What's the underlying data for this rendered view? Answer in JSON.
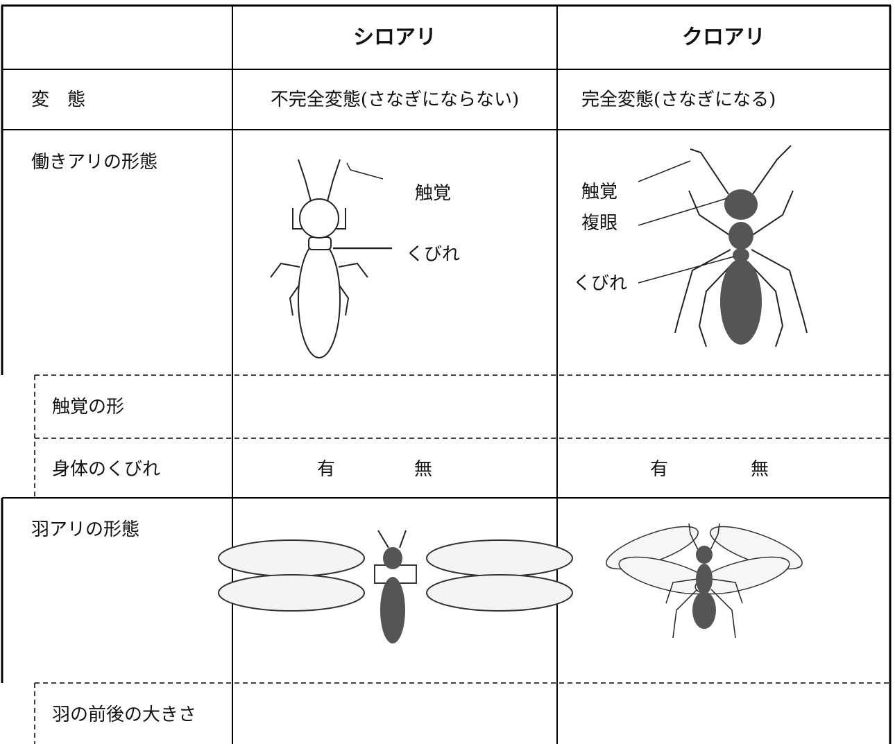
{
  "header": {
    "columns": [
      "シロアリ",
      "クロアリ"
    ]
  },
  "rows": {
    "metamorphosis": {
      "label": "変　態",
      "termite": "不完全変態(さなぎにならない)",
      "ant": "完全変態(さなぎになる)"
    },
    "worker": {
      "label": "働きアリの形態",
      "termite_labels": [
        "触覚",
        "くびれ"
      ],
      "ant_labels": [
        "触覚",
        "複眼",
        "くびれ"
      ]
    },
    "antenna_shape": {
      "label": "触覚の形"
    },
    "waist": {
      "label": "身体のくびれ",
      "termite_options": [
        "有",
        "無"
      ],
      "ant_options": [
        "有",
        "無"
      ]
    },
    "winged": {
      "label": "羽アリの形態"
    },
    "wing_size": {
      "label": "羽の前後の大きさ"
    }
  }
}
